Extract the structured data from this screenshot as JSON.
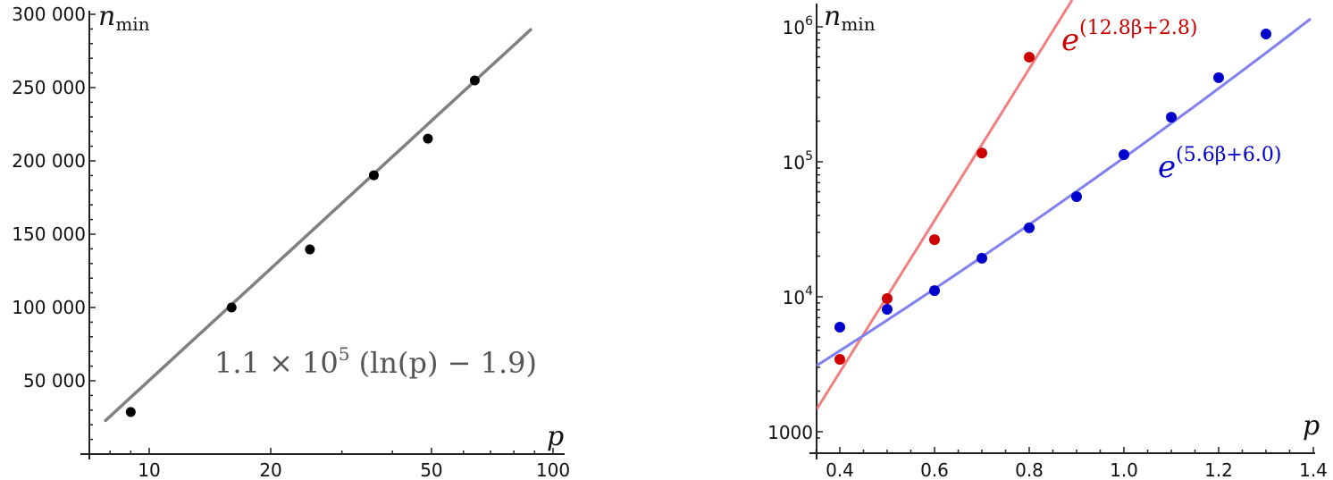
{
  "chart_data": [
    {
      "type": "scatter",
      "title": "",
      "xlabel": "p",
      "ylabel": "n_min",
      "xscale": "log",
      "yscale": "linear",
      "xlim": [
        7.6,
        100
      ],
      "ylim": [
        0,
        300000
      ],
      "xticks": [
        10,
        20,
        50,
        100
      ],
      "xtick_labels": [
        "10",
        "20",
        "50",
        "100"
      ],
      "yticks": [
        50000,
        100000,
        150000,
        200000,
        250000,
        300000
      ],
      "ytick_labels": [
        "50 000",
        "100 000",
        "150 000",
        "200 000",
        "250 000",
        "300 000"
      ],
      "grid": false,
      "series": [
        {
          "name": "data",
          "kind": "points",
          "color": "#000000",
          "x": [
            9,
            16,
            25,
            36,
            49,
            64
          ],
          "y": [
            28700,
            100000,
            139600,
            190200,
            215200,
            254900
          ]
        },
        {
          "name": "fit",
          "kind": "line",
          "color": "#808080",
          "formula": "1.1 × 10^5 (ln(p) − 1.9)",
          "x_range": [
            7.8,
            88
          ]
        }
      ],
      "annotations": [
        {
          "text": "1.1 × 10⁵ (ln(p) − 1.9)",
          "color": "#555555"
        }
      ]
    },
    {
      "type": "scatter",
      "title": "",
      "xlabel": "p",
      "ylabel": "n_min",
      "xscale": "linear",
      "yscale": "log",
      "xlim": [
        0.35,
        1.4
      ],
      "ylim": [
        800,
        1200000
      ],
      "xticks": [
        0.4,
        0.6,
        0.8,
        1.0,
        1.2,
        1.4
      ],
      "xtick_labels": [
        "0.4",
        "0.6",
        "0.8",
        "1.0",
        "1.2",
        "1.4"
      ],
      "yticks": [
        1000,
        10000,
        100000,
        1000000
      ],
      "ytick_labels": [
        "1000",
        "10^4",
        "10^5",
        "10^6"
      ],
      "grid": false,
      "series": [
        {
          "name": "red data",
          "kind": "points",
          "color": "#cc0000",
          "x": [
            0.4,
            0.5,
            0.6,
            0.7,
            0.8
          ],
          "y": [
            3440,
            9700,
            26500,
            116000,
            596000
          ]
        },
        {
          "name": "blue data",
          "kind": "points",
          "color": "#0000cc",
          "x": [
            0.4,
            0.5,
            0.6,
            0.7,
            0.8,
            0.9,
            1.0,
            1.1,
            1.2,
            1.3
          ],
          "y": [
            5950,
            8070,
            11100,
            19300,
            32400,
            55200,
            113000,
            214000,
            420000,
            885000
          ]
        },
        {
          "name": "red fit",
          "kind": "line",
          "color": "#f08080",
          "formula": "e^(12.8β+2.8)",
          "a": 12.8,
          "b": 2.8
        },
        {
          "name": "blue fit",
          "kind": "line",
          "color": "#8080f0",
          "formula": "e^(5.6β+6.0)",
          "a": 5.6,
          "b": 6.0
        }
      ],
      "annotations": [
        {
          "text": "e^(12.8β+2.8)",
          "color": "#cc0000"
        },
        {
          "text": "e^(5.6β+6.0)",
          "color": "#0000cc"
        }
      ]
    }
  ],
  "left": {
    "ylabel_main": "n",
    "ylabel_sub": "min",
    "xlabel": "p",
    "formula": {
      "coef": "1.1 × 10",
      "exp": "5",
      "rest": " (ln(p) − 1.9)"
    }
  },
  "right": {
    "ylabel_main": "n",
    "ylabel_sub": "min",
    "xlabel": "p",
    "red_formula": {
      "base": "e",
      "exp": "(12.8β+2.8)"
    },
    "blue_formula": {
      "base": "e",
      "exp": "(5.6β+6.0)"
    },
    "ytick_1000": "1000",
    "ytick_base": "10",
    "ytick_exps": [
      "4",
      "5",
      "6"
    ]
  }
}
